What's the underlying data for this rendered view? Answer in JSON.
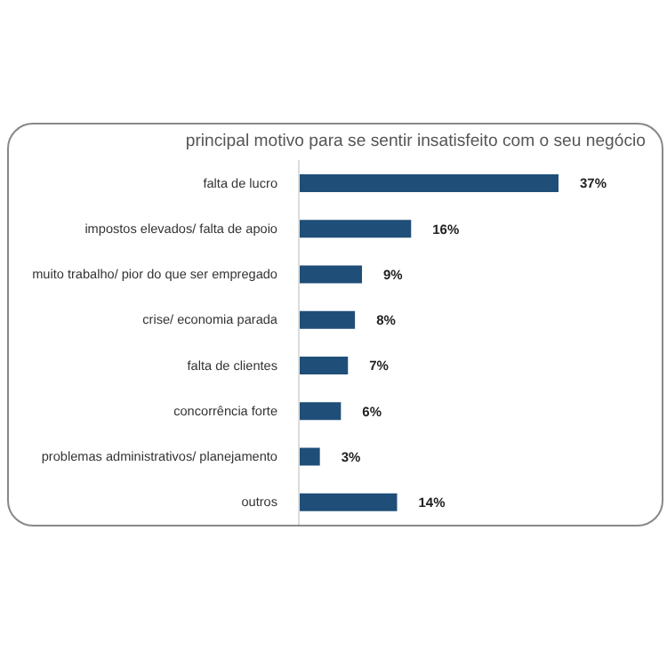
{
  "chart_data": {
    "type": "bar",
    "orientation": "horizontal",
    "title": "principal motivo para se sentir insatisfeito com o seu negócio",
    "categories": [
      "falta de lucro",
      "impostos elevados/ falta de apoio",
      "muito trabalho/ pior do que ser empregado",
      "crise/ economia parada",
      "falta de clientes",
      "concorrência forte",
      "problemas administrativos/ planejamento",
      "outros"
    ],
    "values": [
      37,
      16,
      9,
      8,
      7,
      6,
      3,
      14
    ],
    "value_labels": [
      "37%",
      "16%",
      "9%",
      "8%",
      "7%",
      "6%",
      "3%",
      "14%"
    ],
    "color": "#1f4e79",
    "tick_labels": "y"
  }
}
